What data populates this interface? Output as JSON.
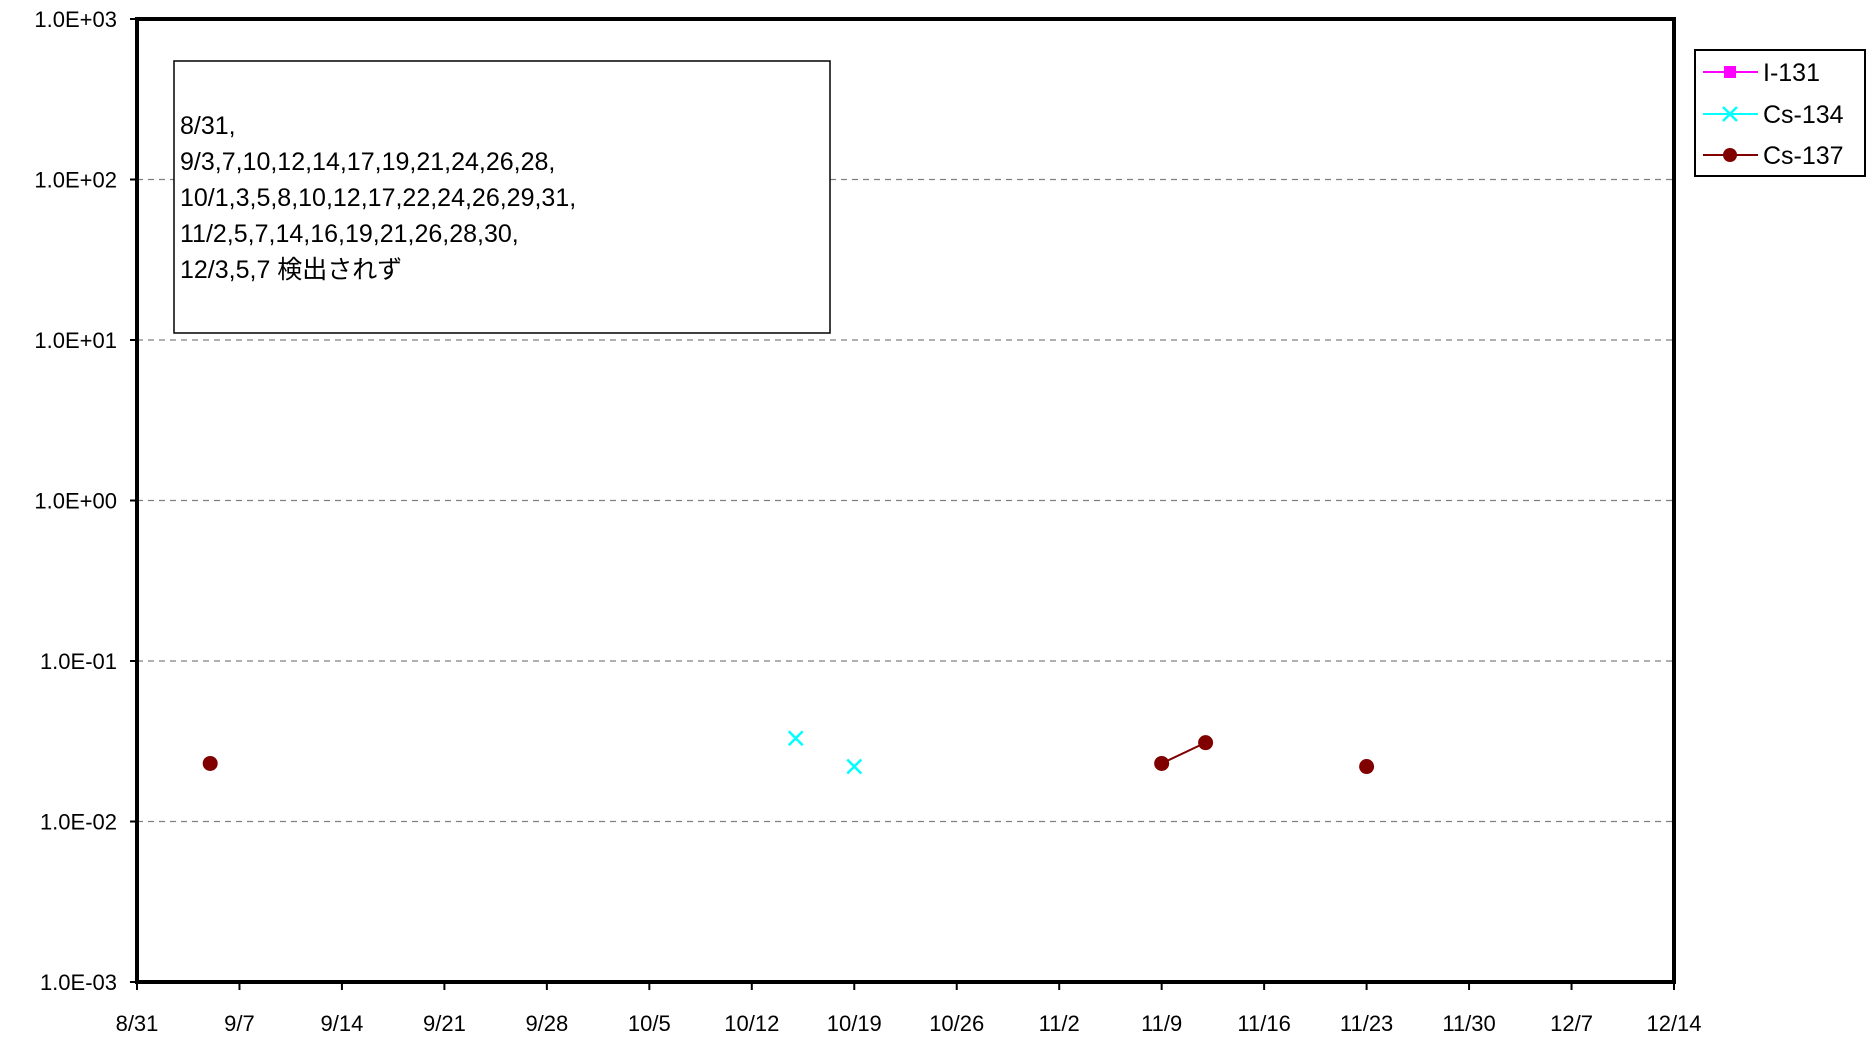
{
  "chart_data": {
    "type": "line",
    "title": "",
    "xlabel": "",
    "ylabel": "",
    "x_axis": {
      "type": "date",
      "range": [
        "8/31",
        "12/14"
      ],
      "tick_labels": [
        "8/31",
        "9/7",
        "9/14",
        "9/21",
        "9/28",
        "10/5",
        "10/12",
        "10/19",
        "10/26",
        "11/2",
        "11/9",
        "11/16",
        "11/23",
        "11/30",
        "12/7",
        "12/14"
      ]
    },
    "y_axis": {
      "scale": "log",
      "range": [
        0.001,
        1000
      ],
      "tick_values": [
        1000,
        100,
        10,
        1,
        0.1,
        0.01,
        0.001
      ],
      "tick_labels": [
        "1.0E+03",
        "1.0E+02",
        "1.0E+01",
        "1.0E+00",
        "1.0E-01",
        "1.0E-02",
        "1.0E-03"
      ],
      "gridlines": "dashed"
    },
    "legend_position": "right",
    "series": [
      {
        "name": "I-131",
        "color": "#ff00ff",
        "marker": "square",
        "points": []
      },
      {
        "name": "Cs-134",
        "color": "#00ffff",
        "marker": "x",
        "points": [
          {
            "x": "10/15",
            "y": 0.033,
            "connect_prev": false
          },
          {
            "x": "10/19",
            "y": 0.022,
            "connect_prev": false
          }
        ]
      },
      {
        "name": "Cs-137",
        "color": "#800000",
        "marker": "circle",
        "points": [
          {
            "x": "9/5",
            "y": 0.023,
            "connect_prev": false
          },
          {
            "x": "11/9",
            "y": 0.023,
            "connect_prev": false
          },
          {
            "x": "11/12",
            "y": 0.031,
            "connect_prev": true
          },
          {
            "x": "11/23",
            "y": 0.022,
            "connect_prev": false
          }
        ]
      }
    ],
    "annotation": {
      "lines": [
        "8/31,",
        "9/3,7,10,12,14,17,19,21,24,26,28,",
        "10/1,3,5,8,10,12,17,22,24,26,29,31,",
        "11/2,5,7,14,16,19,21,26,28,30,",
        "12/3,5,7 検出されず"
      ]
    }
  }
}
